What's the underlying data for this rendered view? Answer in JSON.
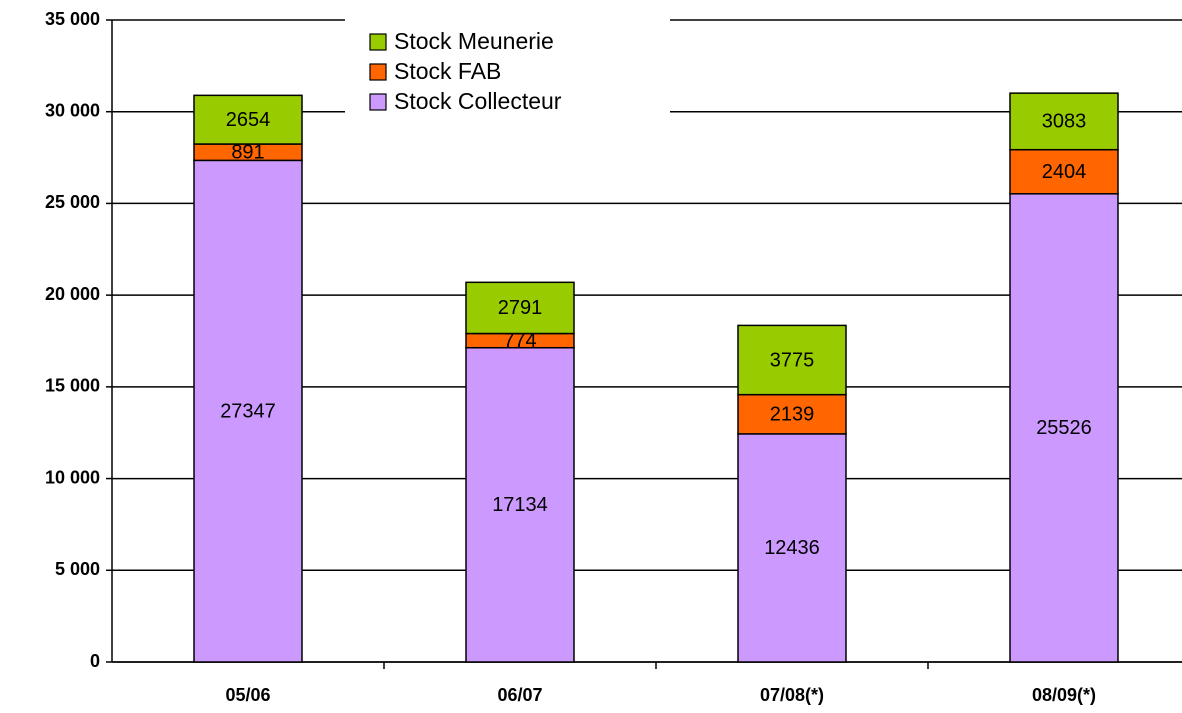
{
  "chart_data": {
    "type": "stacked_bar",
    "categories": [
      "05/06",
      "06/07",
      "07/08(*)",
      "08/09(*)"
    ],
    "series": [
      {
        "name": "Stock Collecteur",
        "color": "#cc99ff",
        "values": [
          27347,
          17134,
          12436,
          25526
        ]
      },
      {
        "name": "Stock FAB",
        "color": "#ff6600",
        "values": [
          891,
          774,
          2139,
          2404
        ]
      },
      {
        "name": "Stock Meunerie",
        "color": "#99cc00",
        "values": [
          2654,
          2791,
          3775,
          3083
        ]
      }
    ],
    "ylim": [
      0,
      35000
    ],
    "yticks": [
      0,
      {
        "value": 5000,
        "label": "5 000"
      },
      {
        "value": 10000,
        "label": "10 000"
      },
      {
        "value": 15000,
        "label": "15 000"
      },
      {
        "value": 20000,
        "label": "20 000"
      },
      {
        "value": 25000,
        "label": "25 000"
      },
      {
        "value": 30000,
        "label": "30 000"
      },
      {
        "value": 35000,
        "label": "35 000"
      }
    ],
    "grid": true
  }
}
